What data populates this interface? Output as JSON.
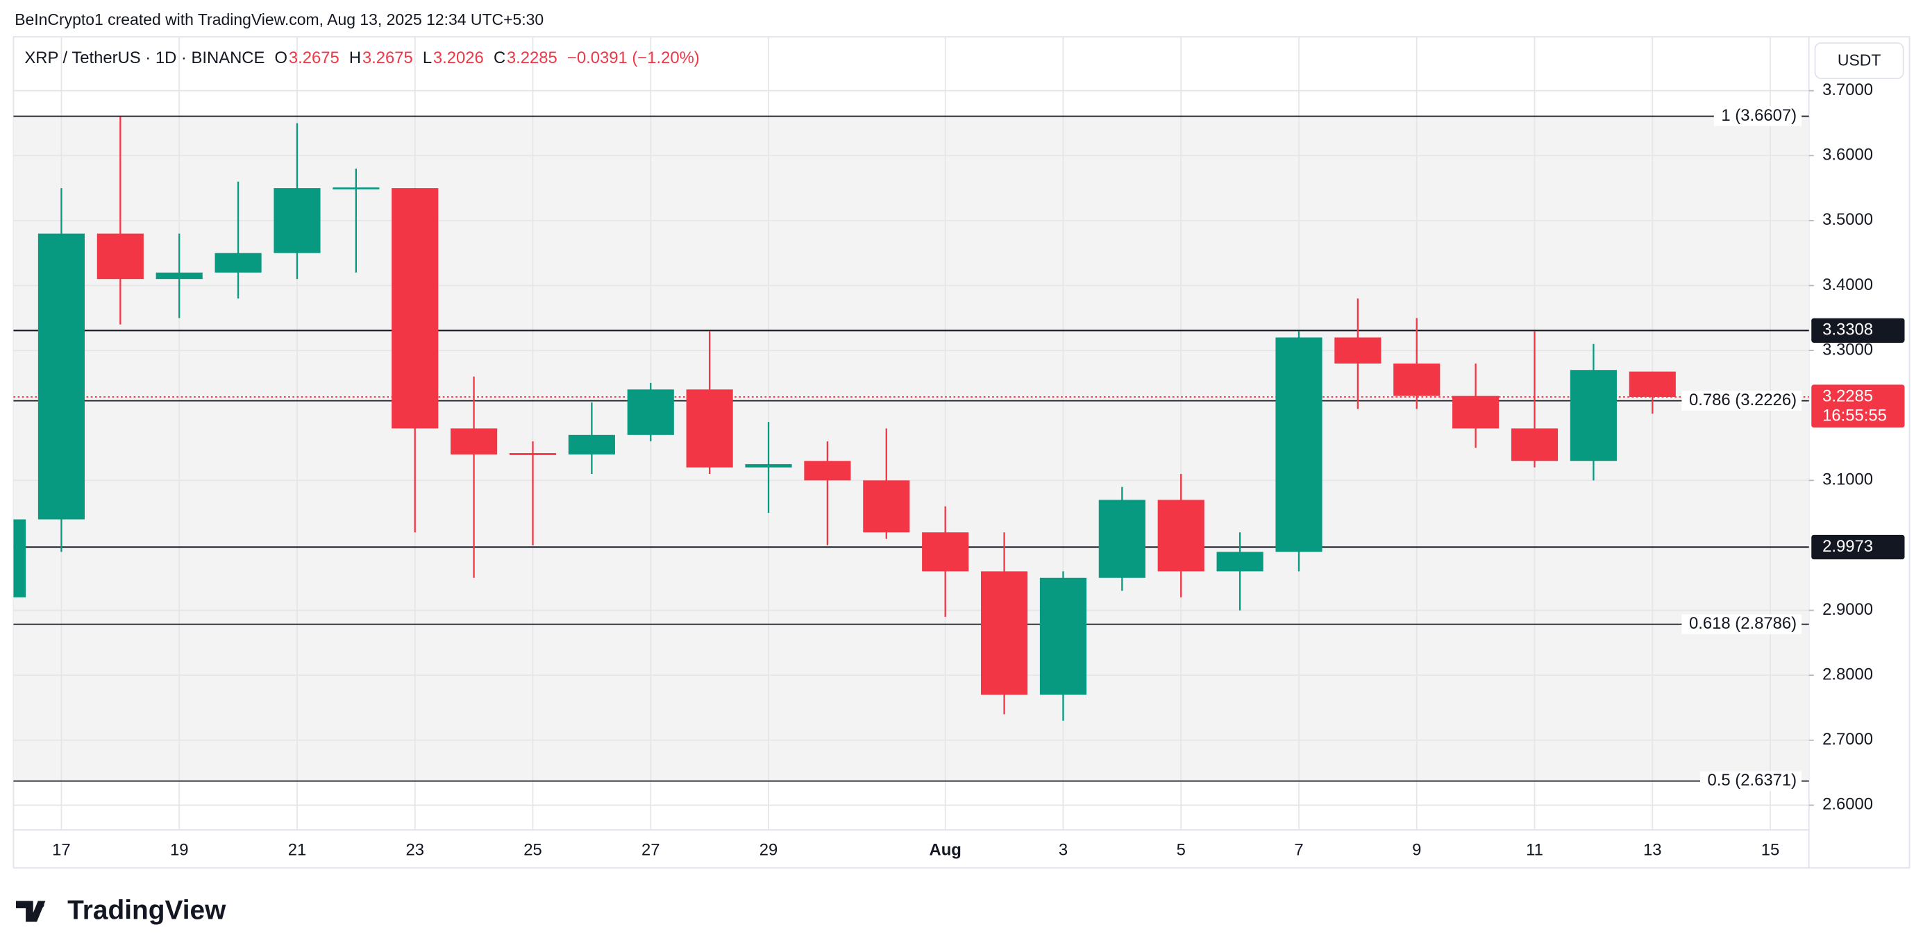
{
  "header": {
    "credit": "BeInCrypto1 created with TradingView.com, Aug 13, 2025 12:34 UTC+5:30",
    "symbol": "XRP / TetherUS · 1D · BINANCE",
    "ohlc": [
      {
        "label": "O",
        "value": 3.2675
      },
      {
        "label": "H",
        "value": 3.2675
      },
      {
        "label": "L",
        "value": 3.2026
      },
      {
        "label": "C",
        "value": 3.2285
      }
    ],
    "change": "−0.0391 (−1.20%)"
  },
  "chart_data": {
    "type": "candlestick",
    "categories": [
      null,
      "17",
      null,
      "19",
      null,
      "21",
      null,
      "23",
      null,
      "25",
      null,
      "27",
      null,
      "29",
      null,
      null,
      "Aug",
      null,
      "3",
      null,
      "5",
      null,
      "7",
      null,
      "9",
      null,
      "11",
      null,
      "13",
      null,
      "15"
    ],
    "open": [
      2.92,
      3.04,
      3.48,
      3.41,
      3.42,
      3.45,
      3.549,
      3.55,
      3.18,
      3.142,
      3.14,
      3.17,
      3.24,
      3.12,
      3.13,
      3.1,
      3.02,
      2.96,
      2.77,
      2.95,
      3.07,
      2.96,
      2.99,
      3.32,
      3.28,
      3.23,
      3.18,
      3.13,
      3.2675,
      null,
      null
    ],
    "high": [
      3.05,
      3.55,
      3.66,
      3.48,
      3.56,
      3.65,
      3.58,
      3.55,
      3.26,
      3.16,
      3.22,
      3.25,
      3.33,
      3.19,
      3.16,
      3.18,
      3.06,
      3.02,
      2.96,
      3.09,
      3.11,
      3.02,
      3.33,
      3.38,
      3.35,
      3.28,
      3.33,
      3.31,
      3.2675,
      null,
      null
    ],
    "low": [
      2.91,
      2.99,
      3.34,
      3.35,
      3.38,
      3.41,
      3.42,
      3.02,
      2.95,
      3.0,
      3.11,
      3.16,
      3.11,
      3.05,
      3.0,
      3.01,
      2.89,
      2.74,
      2.73,
      2.93,
      2.92,
      2.9,
      2.96,
      3.21,
      3.21,
      3.15,
      3.12,
      3.1,
      3.2026,
      null,
      null
    ],
    "close": [
      3.04,
      3.48,
      3.41,
      3.42,
      3.45,
      3.55,
      3.551,
      3.18,
      3.14,
      3.139,
      3.17,
      3.24,
      3.12,
      3.125,
      3.1,
      3.02,
      2.96,
      2.77,
      2.95,
      3.07,
      2.96,
      2.99,
      3.32,
      3.28,
      3.23,
      3.18,
      3.13,
      3.27,
      3.2285,
      null,
      null
    ],
    "up_color": "#089981",
    "down_color": "#f23645",
    "ylim": [
      2.562,
      3.783
    ],
    "yticks": [
      {
        "value": 2.6,
        "label": "2.6000"
      },
      {
        "value": 2.7,
        "label": "2.7000"
      },
      {
        "value": 2.8,
        "label": "2.8000"
      },
      {
        "value": 2.9,
        "label": "2.9000"
      },
      {
        "value": 3.1,
        "label": "3.1000"
      },
      {
        "value": 3.3,
        "label": "3.3000"
      },
      {
        "value": 3.4,
        "label": "3.4000"
      },
      {
        "value": 3.5,
        "label": "3.5000"
      },
      {
        "value": 3.6,
        "label": "3.6000"
      },
      {
        "value": 3.7,
        "label": "3.7000"
      }
    ],
    "grid": true,
    "currency": "USDT",
    "fib_levels": [
      {
        "value": 3.6607,
        "label": "1 (3.6607)"
      },
      {
        "value": 3.2226,
        "label": "0.786 (3.2226)"
      },
      {
        "value": 2.8786,
        "label": "0.618 (2.8786)"
      },
      {
        "value": 2.6371,
        "label": "0.5 (2.6371)"
      }
    ],
    "levels": [
      3.3308,
      2.9973
    ],
    "last_price": 3.2285,
    "countdown": "16:55:55"
  },
  "footer": {
    "logo": "TradingView"
  }
}
